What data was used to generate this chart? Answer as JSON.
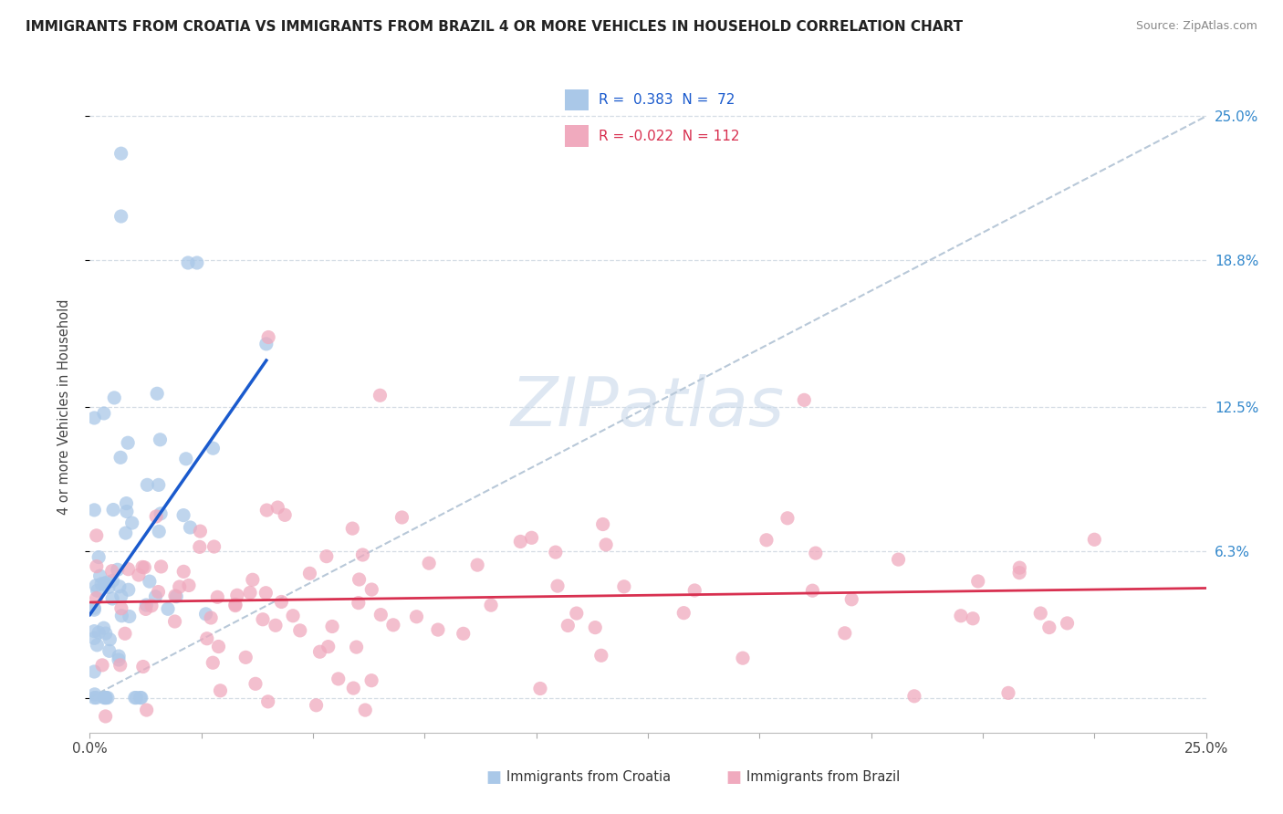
{
  "title": "IMMIGRANTS FROM CROATIA VS IMMIGRANTS FROM BRAZIL 4 OR MORE VEHICLES IN HOUSEHOLD CORRELATION CHART",
  "source": "Source: ZipAtlas.com",
  "ylabel": "4 or more Vehicles in Household",
  "y_ticks": [
    0.0,
    0.063,
    0.125,
    0.188,
    0.25
  ],
  "y_labels": [
    "",
    "6.3%",
    "12.5%",
    "18.8%",
    "25.0%"
  ],
  "x_ticks": [
    0.0,
    0.025,
    0.05,
    0.075,
    0.1,
    0.125,
    0.15,
    0.175,
    0.2,
    0.225,
    0.25
  ],
  "x_labels": [
    "0.0%",
    "",
    "",
    "",
    "",
    "",
    "",
    "",
    "",
    "",
    "25.0%"
  ],
  "xlim": [
    0.0,
    0.25
  ],
  "ylim": [
    -0.015,
    0.265
  ],
  "croatia_R": 0.383,
  "croatia_N": 72,
  "brazil_R": -0.022,
  "brazil_N": 112,
  "croatia_color": "#aac8e8",
  "brazil_color": "#f0aabe",
  "croatia_line_color": "#1a5acd",
  "brazil_line_color": "#d83050",
  "diagonal_color": "#b8c8d8",
  "watermark_color": "#c8d8ea",
  "title_fontsize": 11,
  "tick_fontsize": 11,
  "right_tick_color": "#3388cc"
}
